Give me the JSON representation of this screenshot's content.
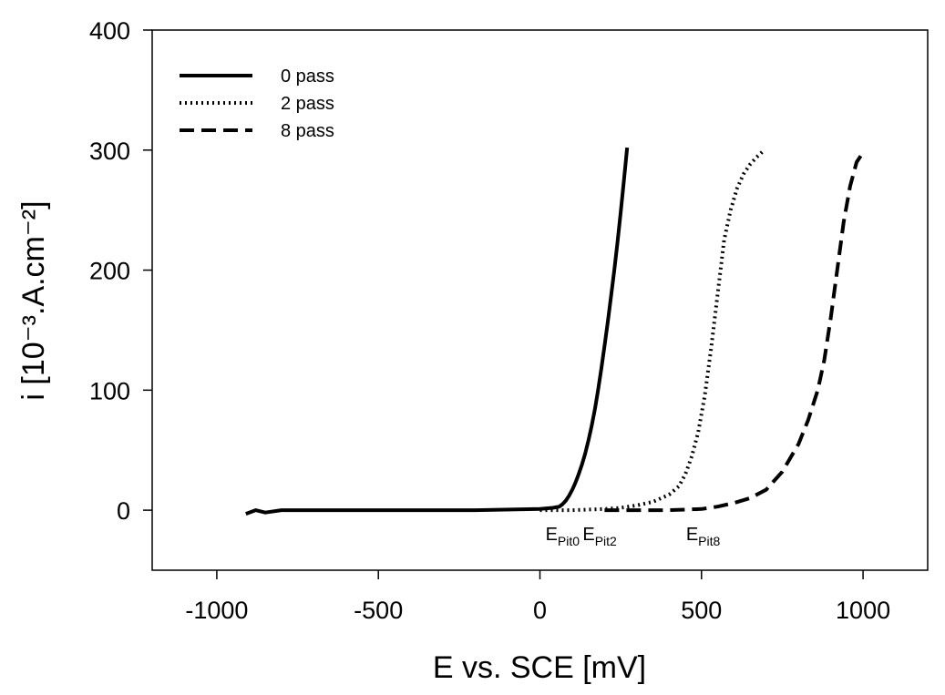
{
  "chart_data": {
    "type": "line",
    "title": "",
    "xlabel": "E vs. SCE [mV]",
    "ylabel": "i [10⁻³.A.cm⁻²]",
    "xlim": [
      -1200,
      1200
    ],
    "ylim": [
      -50,
      400
    ],
    "xticks": [
      -1000,
      -500,
      0,
      500,
      1000
    ],
    "yticks": [
      0,
      100,
      200,
      300,
      400
    ],
    "grid": false,
    "legend": "top-left",
    "series": [
      {
        "name": "0 pass",
        "style": "solid",
        "color": "#000000",
        "x": [
          -910,
          -880,
          -850,
          -800,
          -500,
          -200,
          0,
          40,
          60,
          70,
          80,
          90,
          100,
          110,
          120,
          130,
          140,
          150,
          160,
          170,
          180,
          190,
          200,
          210,
          220,
          230,
          240,
          250,
          260,
          270
        ],
        "y": [
          -3,
          0,
          -2,
          0,
          0,
          0,
          1,
          2,
          3,
          5,
          8,
          12,
          17,
          23,
          30,
          38,
          47,
          58,
          70,
          84,
          100,
          118,
          137,
          157,
          178,
          200,
          223,
          248,
          275,
          302
        ]
      },
      {
        "name": "2 pass",
        "style": "dotted",
        "color": "#000000",
        "x": [
          0,
          100,
          200,
          250,
          300,
          350,
          400,
          430,
          450,
          470,
          490,
          510,
          530,
          550,
          570,
          590,
          610,
          630,
          650,
          670,
          690
        ],
        "y": [
          0,
          0,
          1,
          2,
          4,
          7,
          13,
          20,
          30,
          45,
          65,
          95,
          135,
          180,
          225,
          250,
          268,
          280,
          288,
          294,
          299
        ]
      },
      {
        "name": "8 pass",
        "style": "dashed",
        "color": "#000000",
        "x": [
          200,
          300,
          400,
          500,
          550,
          600,
          650,
          700,
          750,
          800,
          830,
          860,
          880,
          900,
          920,
          940,
          960,
          980,
          1000
        ],
        "y": [
          0,
          0,
          0,
          1,
          3,
          6,
          10,
          17,
          32,
          55,
          75,
          100,
          125,
          160,
          200,
          240,
          270,
          290,
          298
        ]
      }
    ],
    "annotations": [
      {
        "main": "E",
        "sub": "Pit0",
        "x": 70,
        "y": -25
      },
      {
        "main": "E",
        "sub": "Pit2",
        "x": 185,
        "y": -25
      },
      {
        "main": "E",
        "sub": "Pit8",
        "x": 505,
        "y": -25
      }
    ]
  }
}
